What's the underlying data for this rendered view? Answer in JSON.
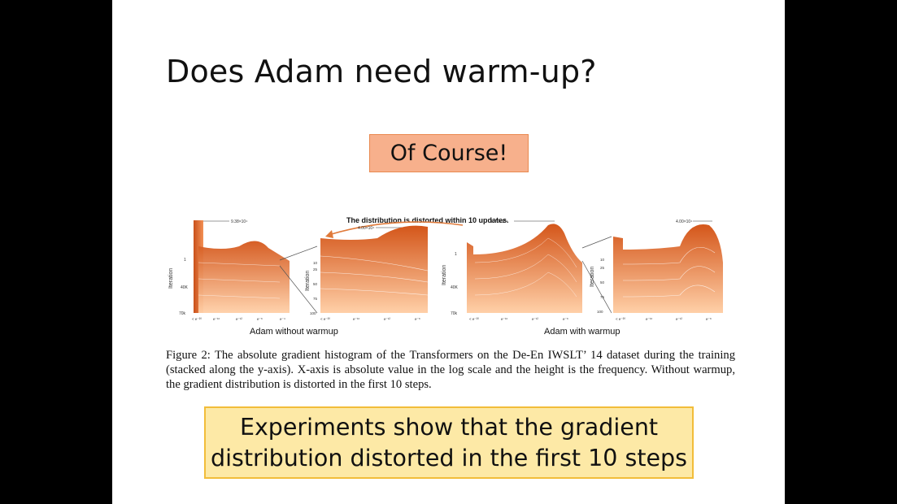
{
  "slide": {
    "title": "Does Adam need warm-up?",
    "callout": "Of Course!",
    "figure": {
      "annotation": "The distribution is distorted within 10 updates.",
      "panel_left": {
        "xlabel": "Adam without warmup",
        "main_peak_label": "9.38×10⁴",
        "zoom_peak_label": "4.00×10⁴",
        "main_y_label": "Iteration",
        "main_y_ticks": [
          "1",
          "40K",
          "70k"
        ],
        "main_x_ticks": [
          "< e⁻²⁰",
          "e⁻¹⁶",
          "e⁻¹²",
          "e⁻⁸",
          "e⁻⁴"
        ],
        "zoom_y_label": "Iteration",
        "zoom_y_ticks": [
          "10",
          "25",
          "50",
          "75",
          "100"
        ],
        "zoom_x_ticks": [
          "< e⁻²⁰",
          "e⁻¹⁶",
          "e⁻¹²",
          "e⁻⁸"
        ]
      },
      "panel_right": {
        "xlabel": "Adam with warmup",
        "main_peak_label": "6.76×10⁴",
        "zoom_peak_label": "4.00×10⁴",
        "main_y_label": "Iteration",
        "main_y_ticks": [
          "1",
          "40K",
          "70k"
        ],
        "main_x_ticks": [
          "< e⁻²⁰",
          "e⁻¹⁶",
          "e⁻¹²",
          "e⁻⁸"
        ],
        "zoom_y_label": "Iteration",
        "zoom_y_ticks": [
          "10",
          "25",
          "50",
          "75",
          "100"
        ],
        "zoom_x_ticks": [
          "< e⁻²⁰",
          "e⁻¹⁶",
          "e⁻¹²",
          "e⁻⁸"
        ]
      }
    },
    "caption": "Figure 2: The absolute gradient histogram of the Transformers on the De-En IWSLT’ 14 dataset during the training (stacked along the y-axis). X-axis is absolute value in the log scale and the height is the frequency. Without warmup, the gradient distribution is distorted in the first 10 steps.",
    "conclusion_line1": "Experiments show that the gradient",
    "conclusion_line2": "distribution distorted in the first 10 steps",
    "colors": {
      "callout_bg": "#f7b08c",
      "conclusion_bg": "#fde9a6",
      "histogram_dark": "#d4561a",
      "histogram_light": "#ffd5b0"
    }
  }
}
